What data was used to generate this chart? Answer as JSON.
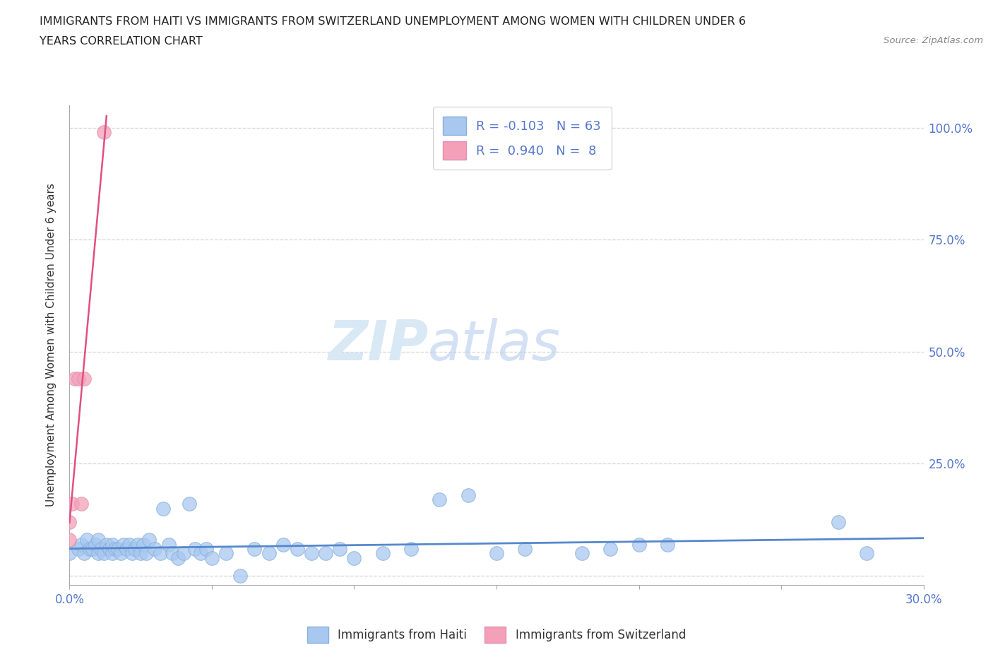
{
  "title_line1": "IMMIGRANTS FROM HAITI VS IMMIGRANTS FROM SWITZERLAND UNEMPLOYMENT AMONG WOMEN WITH CHILDREN UNDER 6",
  "title_line2": "YEARS CORRELATION CHART",
  "source": "Source: ZipAtlas.com",
  "ylabel": "Unemployment Among Women with Children Under 6 years",
  "xlim": [
    0.0,
    0.3
  ],
  "ylim": [
    -0.02,
    1.05
  ],
  "yticks": [
    0.0,
    0.25,
    0.5,
    0.75,
    1.0
  ],
  "yticklabels_right": [
    "",
    "25.0%",
    "50.0%",
    "75.0%",
    "100.0%"
  ],
  "haiti_R": -0.103,
  "haiti_N": 63,
  "swiss_R": 0.94,
  "swiss_N": 8,
  "haiti_color": "#a8c8f0",
  "swiss_color": "#f4a0b8",
  "haiti_line_color": "#5588cc",
  "swiss_line_color": "#e05080",
  "watermark_zip": "ZIP",
  "watermark_atlas": "atlas",
  "haiti_x": [
    0.0,
    0.003,
    0.004,
    0.005,
    0.006,
    0.007,
    0.008,
    0.009,
    0.01,
    0.01,
    0.011,
    0.012,
    0.013,
    0.014,
    0.015,
    0.015,
    0.016,
    0.017,
    0.018,
    0.019,
    0.02,
    0.021,
    0.022,
    0.023,
    0.024,
    0.025,
    0.026,
    0.027,
    0.028,
    0.03,
    0.032,
    0.033,
    0.035,
    0.036,
    0.038,
    0.04,
    0.042,
    0.044,
    0.046,
    0.048,
    0.05,
    0.055,
    0.06,
    0.065,
    0.07,
    0.075,
    0.08,
    0.085,
    0.09,
    0.095,
    0.1,
    0.11,
    0.12,
    0.13,
    0.14,
    0.15,
    0.16,
    0.18,
    0.19,
    0.2,
    0.21,
    0.27,
    0.28
  ],
  "haiti_y": [
    0.05,
    0.06,
    0.07,
    0.05,
    0.08,
    0.06,
    0.06,
    0.07,
    0.05,
    0.08,
    0.06,
    0.05,
    0.07,
    0.06,
    0.05,
    0.07,
    0.06,
    0.06,
    0.05,
    0.07,
    0.06,
    0.07,
    0.05,
    0.06,
    0.07,
    0.05,
    0.07,
    0.05,
    0.08,
    0.06,
    0.05,
    0.15,
    0.07,
    0.05,
    0.04,
    0.05,
    0.16,
    0.06,
    0.05,
    0.06,
    0.04,
    0.05,
    0.0,
    0.06,
    0.05,
    0.07,
    0.06,
    0.05,
    0.05,
    0.06,
    0.04,
    0.05,
    0.06,
    0.17,
    0.18,
    0.05,
    0.06,
    0.05,
    0.06,
    0.07,
    0.07,
    0.12,
    0.05
  ],
  "swiss_x": [
    0.0,
    0.0,
    0.001,
    0.002,
    0.003,
    0.004,
    0.005,
    0.012
  ],
  "swiss_y": [
    0.08,
    0.12,
    0.16,
    0.44,
    0.44,
    0.16,
    0.44,
    0.99
  ]
}
